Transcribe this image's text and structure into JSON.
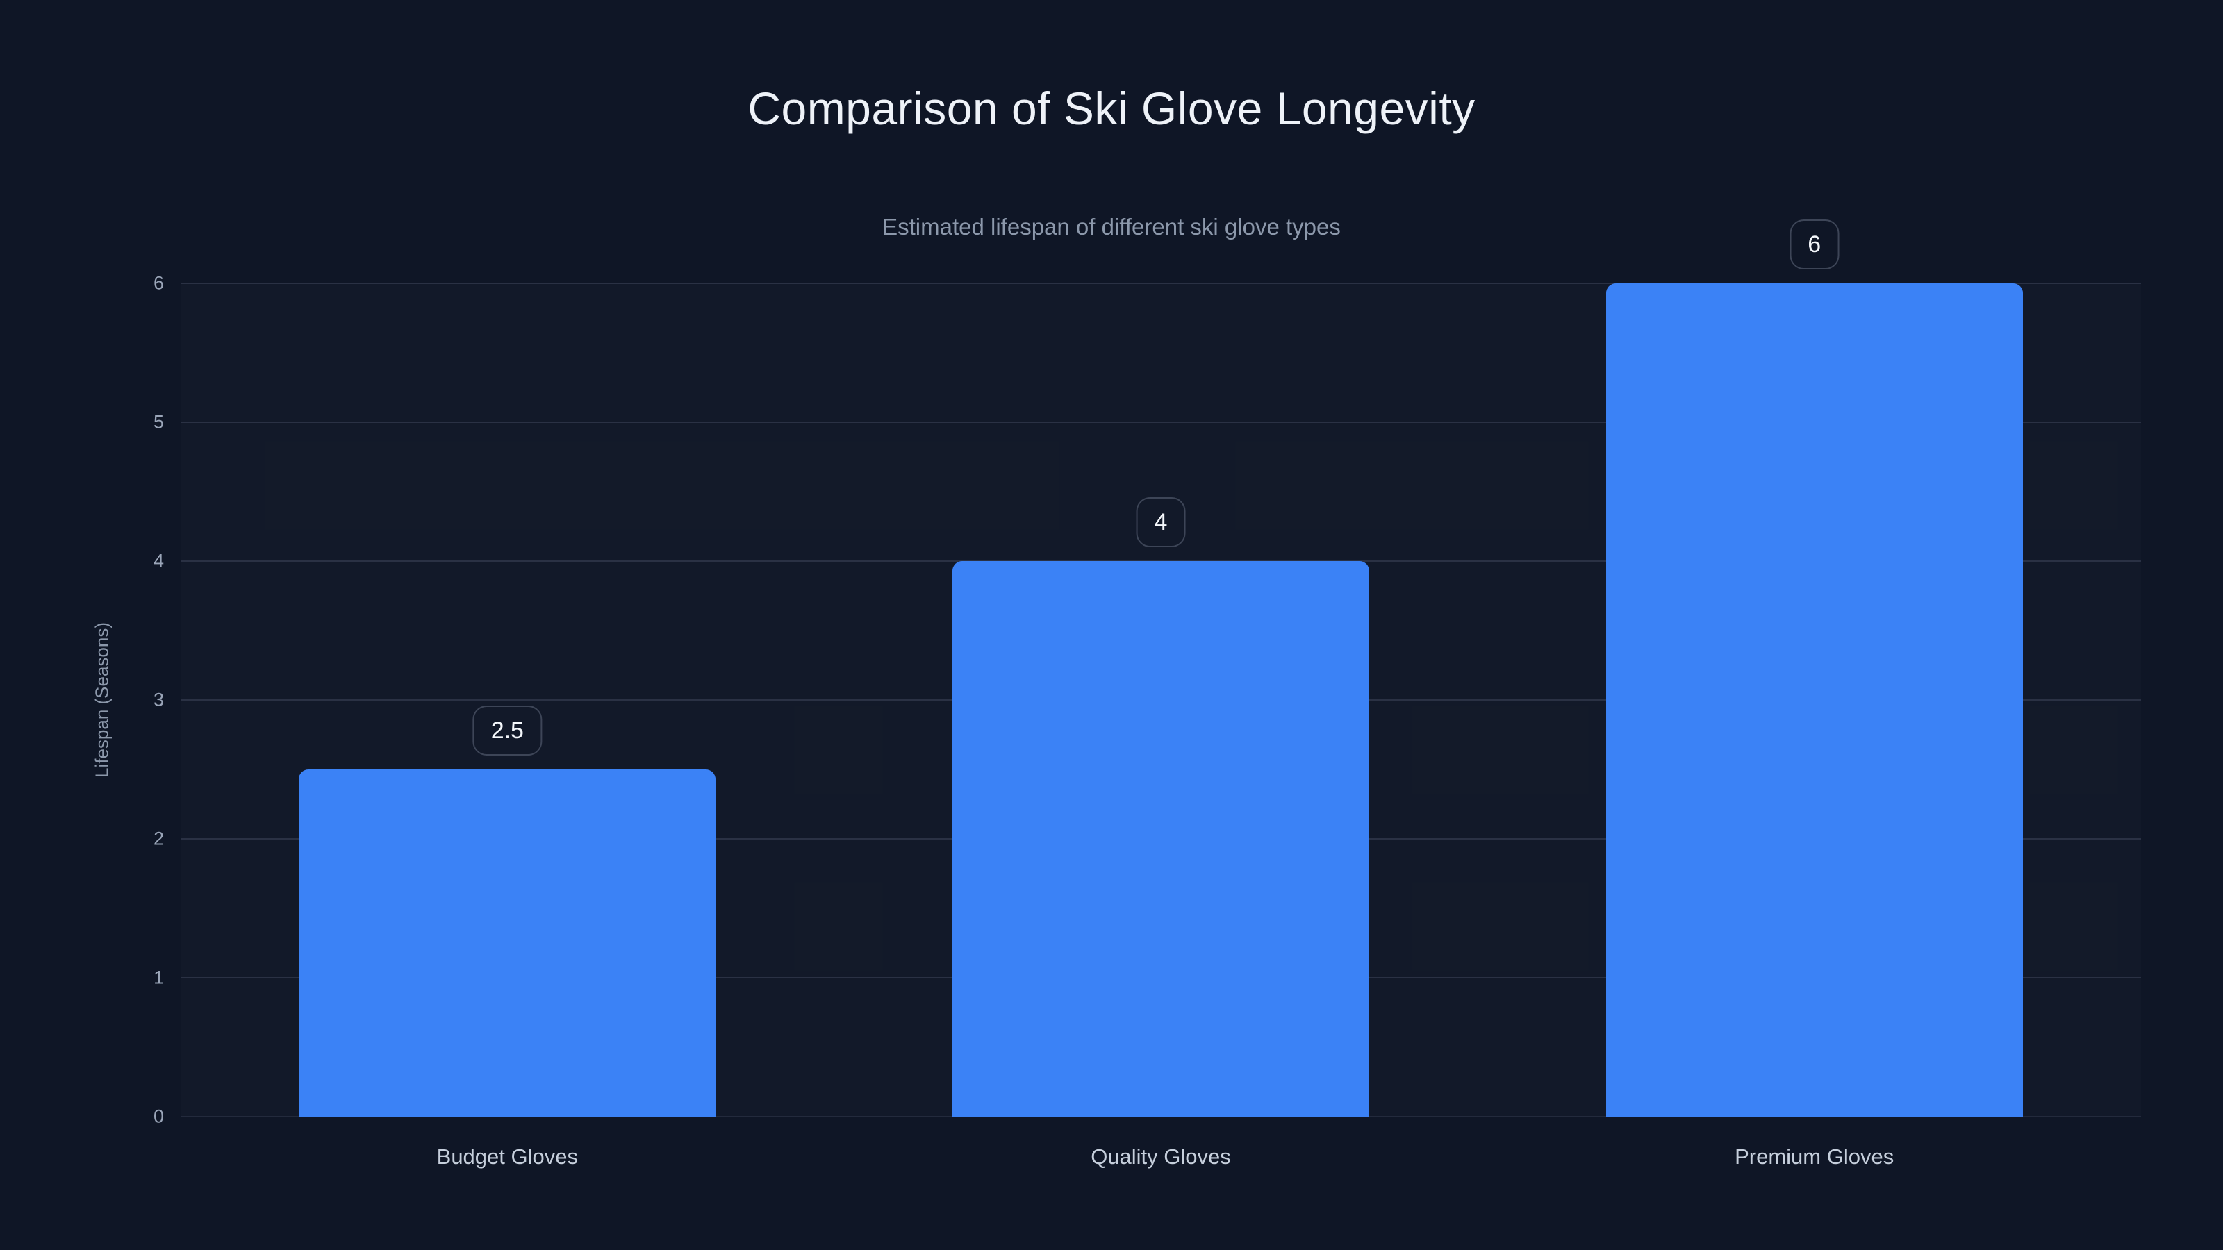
{
  "chart_data": {
    "type": "bar",
    "title": "Comparison of Ski Glove Longevity",
    "subtitle": "Estimated lifespan of different ski glove types",
    "categories": [
      "Budget Gloves",
      "Quality Gloves",
      "Premium Gloves"
    ],
    "values": [
      2.5,
      4,
      6
    ],
    "value_labels": [
      "2.5",
      "4",
      "6"
    ],
    "xlabel": "",
    "ylabel": "Lifespan (Seasons)",
    "ylim": [
      0,
      6
    ],
    "yticks": [
      "0",
      "1",
      "2",
      "3",
      "4",
      "5",
      "6"
    ],
    "grid": true,
    "legend_position": "none",
    "colors": {
      "background": "#0f1626",
      "bar": "#3b82f6",
      "gridline": "#2a3144",
      "axis_line": "#232a3c",
      "title_text": "#eef2f8",
      "subtitle_text": "#8c98ab",
      "tick_text": "#9aa5b8",
      "category_text": "#c6cfdc",
      "badge_border": "#3d4557",
      "badge_text": "#f4f7fb"
    }
  }
}
